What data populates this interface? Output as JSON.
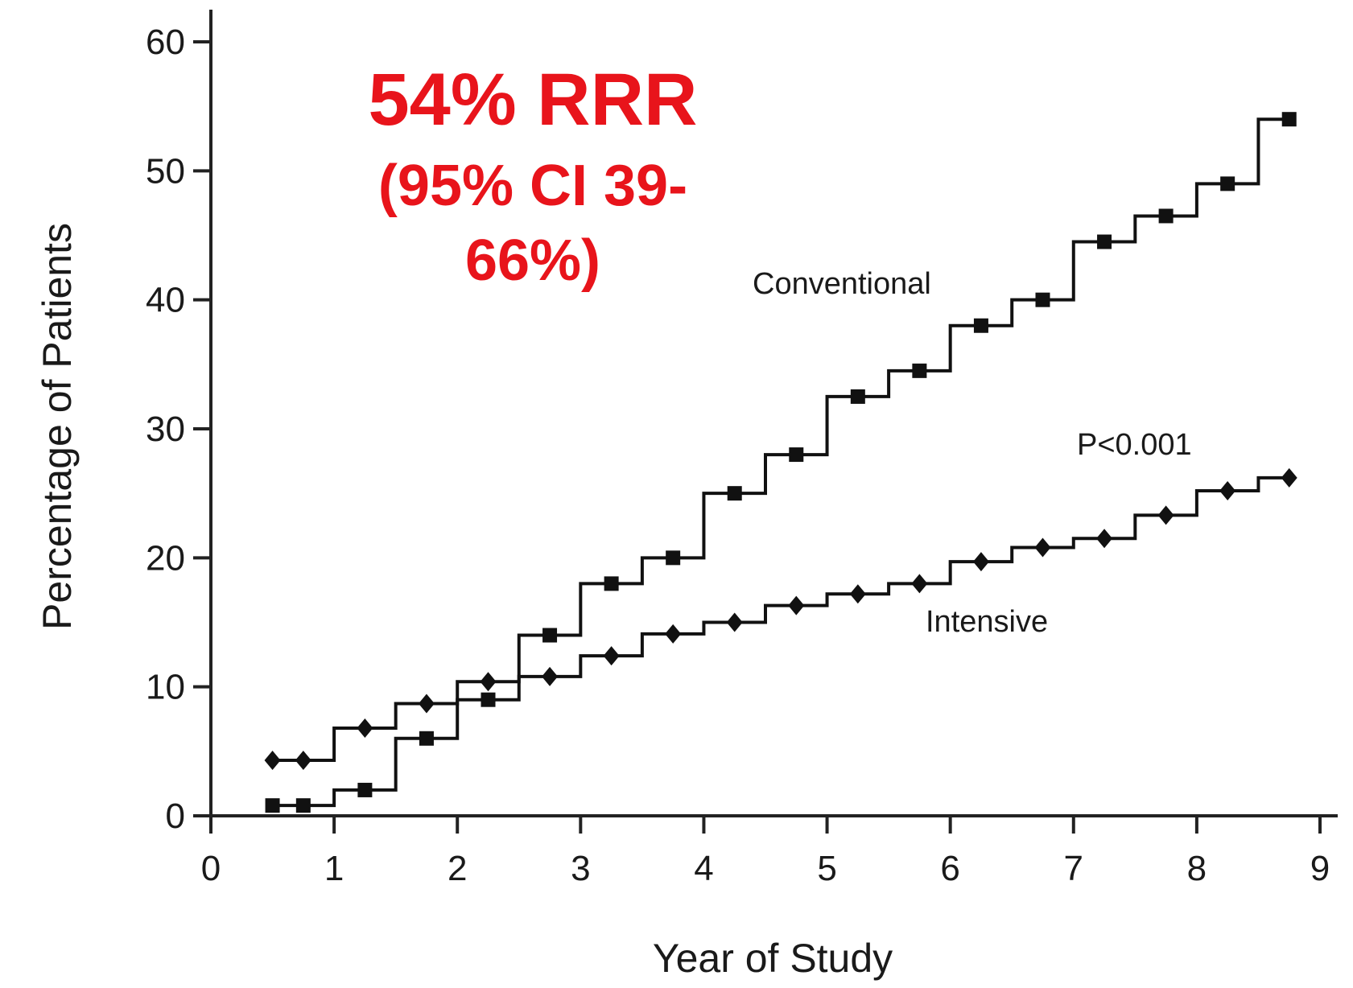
{
  "chart_data": {
    "type": "line",
    "title": "",
    "xlabel": "Year of Study",
    "ylabel": "Percentage of Patients",
    "xlim": [
      0,
      9
    ],
    "ylim": [
      0,
      60
    ],
    "xticks": [
      "0",
      "1",
      "2",
      "3",
      "4",
      "5",
      "6",
      "7",
      "8",
      "9"
    ],
    "yticks": [
      "0",
      "10",
      "20",
      "30",
      "40",
      "50",
      "60"
    ],
    "grid": false,
    "step": true,
    "series": [
      {
        "name": "Conventional",
        "marker": "square",
        "color": "#111111",
        "x": [
          0.5,
          0.75,
          1.25,
          1.75,
          2.25,
          2.75,
          3.25,
          3.75,
          4.25,
          4.75,
          5.25,
          5.75,
          6.25,
          6.75,
          7.25,
          7.75,
          8.25,
          8.75
        ],
        "y": [
          0.8,
          0.8,
          2.0,
          6.0,
          9.0,
          14.0,
          18.0,
          20.0,
          25.0,
          28.0,
          32.5,
          34.5,
          38.0,
          40.0,
          44.5,
          46.5,
          49.0,
          54.0
        ]
      },
      {
        "name": "Intensive",
        "marker": "diamond",
        "color": "#111111",
        "x": [
          0.5,
          0.75,
          1.25,
          1.75,
          2.25,
          2.75,
          3.25,
          3.75,
          4.25,
          4.75,
          5.25,
          5.75,
          6.25,
          6.75,
          7.25,
          7.75,
          8.25,
          8.75
        ],
        "y": [
          4.3,
          4.3,
          6.8,
          8.7,
          10.4,
          10.8,
          12.4,
          14.1,
          15.0,
          16.3,
          17.2,
          18.0,
          19.7,
          20.8,
          21.5,
          23.3,
          25.2,
          26.2
        ]
      }
    ],
    "annotations": {
      "p_value": "P<0.001",
      "rrr_line1": "54% RRR",
      "rrr_line2": "(95% CI 39-",
      "rrr_line3": "66%)",
      "annotation_color": "#e8141b"
    }
  }
}
